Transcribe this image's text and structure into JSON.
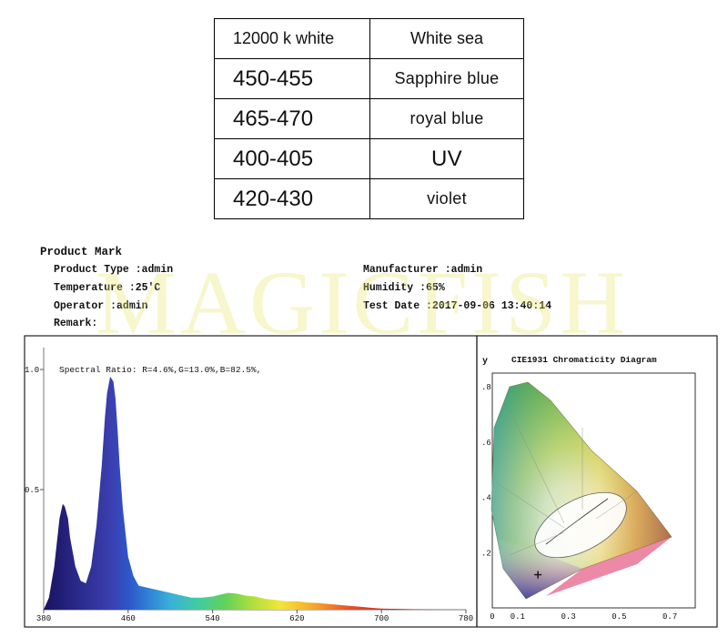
{
  "table": {
    "header": [
      "12000 k white",
      "White sea"
    ],
    "rows": [
      [
        "450-455",
        "Sapphire blue"
      ],
      [
        "465-470",
        "royal blue"
      ],
      [
        "400-405",
        "UV"
      ],
      [
        "420-430",
        "violet"
      ]
    ]
  },
  "report": {
    "heading": "Product Mark",
    "product_type": "Product Type :admin",
    "temperature": "Temperature :25'C",
    "operator": "Operator :admin",
    "remark": "Remark:",
    "manufacturer": "Manufacturer :admin",
    "humidity": "Humidity :65%",
    "test_date": "Test Date :2017-09-06 13:40:14"
  },
  "watermark": "MAGICFISH",
  "chart_data": [
    {
      "type": "area",
      "annotation": "Spectral Ratio:  R=4.6%,G=13.0%,B=82.5%,",
      "ylim": [
        0,
        1.0
      ],
      "xlim": [
        380,
        780
      ],
      "x_ticks": [
        "380",
        "460",
        "540",
        "620",
        "700",
        "780"
      ],
      "y_ticks": [
        "1.0",
        "0.5"
      ],
      "series": [
        {
          "x": [
            380,
            385,
            390,
            395,
            398,
            400,
            403,
            405,
            410,
            415,
            420,
            425,
            430,
            435,
            438,
            440,
            443,
            446,
            448,
            450,
            452,
            455,
            460,
            465,
            470,
            480,
            490,
            500,
            510,
            520,
            530,
            540,
            550,
            555,
            560,
            565,
            570,
            580,
            590,
            600,
            610,
            620,
            630,
            640,
            650,
            660,
            670,
            680,
            690,
            700,
            720,
            740,
            760,
            780
          ],
          "y": [
            0,
            0.05,
            0.18,
            0.38,
            0.44,
            0.43,
            0.38,
            0.3,
            0.18,
            0.12,
            0.11,
            0.18,
            0.35,
            0.6,
            0.8,
            0.9,
            0.97,
            0.95,
            0.88,
            0.75,
            0.6,
            0.42,
            0.22,
            0.14,
            0.1,
            0.09,
            0.08,
            0.07,
            0.06,
            0.05,
            0.05,
            0.055,
            0.065,
            0.07,
            0.068,
            0.065,
            0.06,
            0.055,
            0.045,
            0.04,
            0.035,
            0.035,
            0.03,
            0.028,
            0.024,
            0.02,
            0.016,
            0.012,
            0.008,
            0.005,
            0.003,
            0.001,
            0,
            0
          ]
        }
      ]
    },
    {
      "type": "scatter",
      "title": "CIE1931 Chromaticity Diagram",
      "ylabel": "y",
      "x_ticks": [
        "0",
        "0.1",
        "0.3",
        "0.5",
        "0.7"
      ],
      "x_tick_values": [
        0,
        0.1,
        0.3,
        0.5,
        0.7
      ],
      "y_ticks": [
        ".8",
        ".6",
        ".4",
        ".2"
      ],
      "y_tick_values": [
        0.8,
        0.6,
        0.4,
        0.2
      ],
      "series": [
        {
          "x": [
            0.18
          ],
          "y": [
            0.12
          ]
        }
      ]
    }
  ]
}
